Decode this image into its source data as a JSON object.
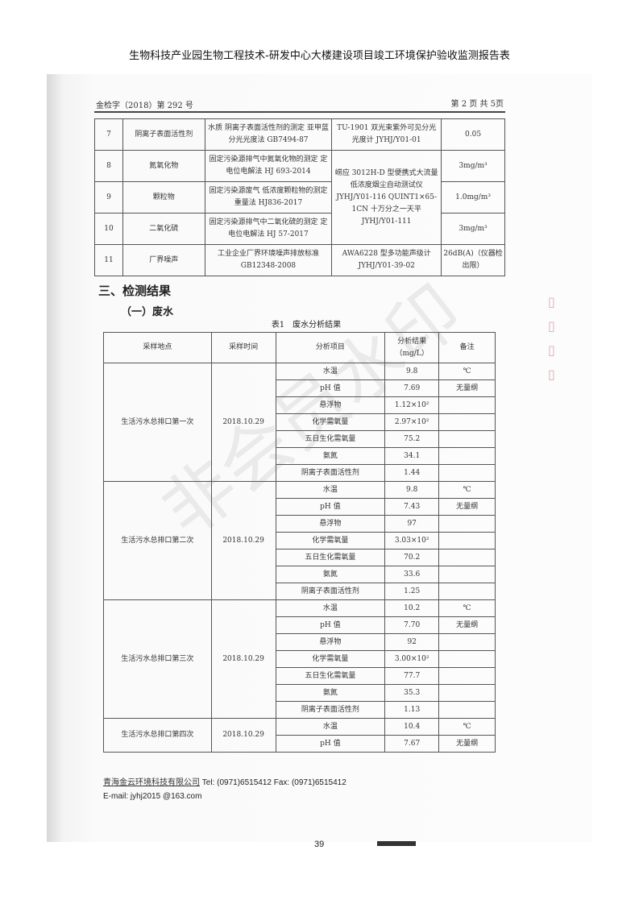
{
  "page_title": "生物科技产业园生物工程技术-研发中心大楼建设项目竣工环境保护验收监测报告表",
  "doc_header": {
    "report_no": "金检字（2018）第 292 号",
    "page_info": "第 2 页 共 5页"
  },
  "method_table": {
    "rows": [
      {
        "no": "7",
        "item": "阴离子表面活性剂",
        "method": "水质 阴离子表面活性剂的测定 亚甲蓝分光光度法 GB7494-87",
        "instrument": "TU-1901 双光束紫外可见分光光度计 JYHJ/Y01-01",
        "limit": "0.05"
      },
      {
        "no": "8",
        "item": "氮氧化物",
        "method": "固定污染源排气中氮氧化物的测定 定电位电解法 HJ 693-2014",
        "instrument": "崂应 3012H-D 型便携式大流量低浓度烟尘自动测试仪 JYHJ/Y01-116 QUINT1×65-1CN 十万分之一天平 JYHJ/Y01-111",
        "limit": "3mg/m³"
      },
      {
        "no": "9",
        "item": "颗粒物",
        "method": "固定污染源废气 低浓度颗粒物的测定 重量法 HJ836-2017",
        "limit": "1.0mg/m³"
      },
      {
        "no": "10",
        "item": "二氧化硫",
        "method": "固定污染源排气中二氧化硫的测定 定电位电解法 HJ 57-2017",
        "limit": "3mg/m³"
      },
      {
        "no": "11",
        "item": "厂界噪声",
        "method": "工业企业厂界环境噪声排放标准 GB12348-2008",
        "instrument": "AWA6228 型多功能声级计 JYHJ/Y01-39-02",
        "limit": "26dB(A)（仪器检出限）"
      }
    ]
  },
  "section_heading": "三、检测结果",
  "subsection_heading": "（一）废水",
  "table_caption": "表1　废水分析结果",
  "results_table": {
    "headers": [
      "采样地点",
      "采样时间",
      "分析项目",
      "分析结果（mg/L）",
      "备注"
    ],
    "groups": [
      {
        "site": "生活污水总排口第一次",
        "date": "2018.10.29",
        "rows": [
          [
            "水温",
            "9.8",
            "℃"
          ],
          [
            "pH 值",
            "7.69",
            "无量纲"
          ],
          [
            "悬浮物",
            "1.12×10²",
            ""
          ],
          [
            "化学需氧量",
            "2.97×10²",
            ""
          ],
          [
            "五日生化需氧量",
            "75.2",
            ""
          ],
          [
            "氨氮",
            "34.1",
            ""
          ],
          [
            "阴离子表面活性剂",
            "1.44",
            ""
          ]
        ]
      },
      {
        "site": "生活污水总排口第二次",
        "date": "2018.10.29",
        "rows": [
          [
            "水温",
            "9.8",
            "℃"
          ],
          [
            "pH 值",
            "7.43",
            "无量纲"
          ],
          [
            "悬浮物",
            "97",
            ""
          ],
          [
            "化学需氧量",
            "3.03×10²",
            ""
          ],
          [
            "五日生化需氧量",
            "70.2",
            ""
          ],
          [
            "氨氮",
            "33.6",
            ""
          ],
          [
            "阴离子表面活性剂",
            "1.25",
            ""
          ]
        ]
      },
      {
        "site": "生活污水总排口第三次",
        "date": "2018.10.29",
        "rows": [
          [
            "水温",
            "10.2",
            "℃"
          ],
          [
            "pH 值",
            "7.70",
            "无量纲"
          ],
          [
            "悬浮物",
            "92",
            ""
          ],
          [
            "化学需氧量",
            "3.00×10²",
            ""
          ],
          [
            "五日生化需氧量",
            "77.7",
            ""
          ],
          [
            "氨氮",
            "35.3",
            ""
          ],
          [
            "阴离子表面活性剂",
            "1.13",
            ""
          ]
        ]
      },
      {
        "site": "生活污水总排口第四次",
        "date": "2018.10.29",
        "rows": [
          [
            "水温",
            "10.4",
            "℃"
          ],
          [
            "pH 值",
            "7.67",
            "无量纲"
          ]
        ]
      }
    ]
  },
  "footer": {
    "company": "青海金云环境科技有限公司",
    "contact": " Tel:  (0971)6515412   Fax:  (0971)6515412",
    "email": "E-mail: jyhj2015 @163.com"
  },
  "page_number": "39",
  "watermark": "非会员水印"
}
